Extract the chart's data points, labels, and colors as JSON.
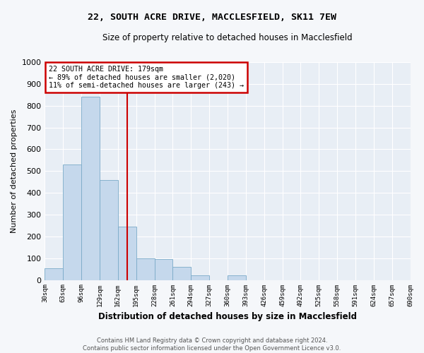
{
  "title": "22, SOUTH ACRE DRIVE, MACCLESFIELD, SK11 7EW",
  "subtitle": "Size of property relative to detached houses in Macclesfield",
  "xlabel": "Distribution of detached houses by size in Macclesfield",
  "ylabel": "Number of detached properties",
  "footer_line1": "Contains HM Land Registry data © Crown copyright and database right 2024.",
  "footer_line2": "Contains public sector information licensed under the Open Government Licence v3.0.",
  "annotation_line1": "22 SOUTH ACRE DRIVE: 179sqm",
  "annotation_line2": "← 89% of detached houses are smaller (2,020)",
  "annotation_line3": "11% of semi-detached houses are larger (243) →",
  "bar_edges": [
    30,
    63,
    96,
    129,
    162,
    195,
    228,
    261,
    294,
    327,
    360,
    393,
    426,
    459,
    492,
    525,
    558,
    591,
    624,
    657,
    690
  ],
  "bar_heights": [
    55,
    530,
    840,
    460,
    245,
    100,
    95,
    60,
    20,
    0,
    20,
    0,
    0,
    0,
    0,
    0,
    0,
    0,
    0,
    0
  ],
  "bar_color": "#c5d8ec",
  "bar_edge_color": "#7aaac8",
  "vline_x": 179,
  "vline_color": "#cc0000",
  "annotation_box_edgecolor": "#cc0000",
  "fig_bg_color": "#f5f7fa",
  "ax_bg_color": "#e8eef5",
  "grid_color": "#ffffff",
  "ylim": [
    0,
    1000
  ],
  "yticks": [
    0,
    100,
    200,
    300,
    400,
    500,
    600,
    700,
    800,
    900,
    1000
  ],
  "tick_labels": [
    "30sqm",
    "63sqm",
    "96sqm",
    "129sqm",
    "162sqm",
    "195sqm",
    "228sqm",
    "261sqm",
    "294sqm",
    "327sqm",
    "360sqm",
    "393sqm",
    "426sqm",
    "459sqm",
    "492sqm",
    "525sqm",
    "558sqm",
    "591sqm",
    "624sqm",
    "657sqm",
    "690sqm"
  ]
}
